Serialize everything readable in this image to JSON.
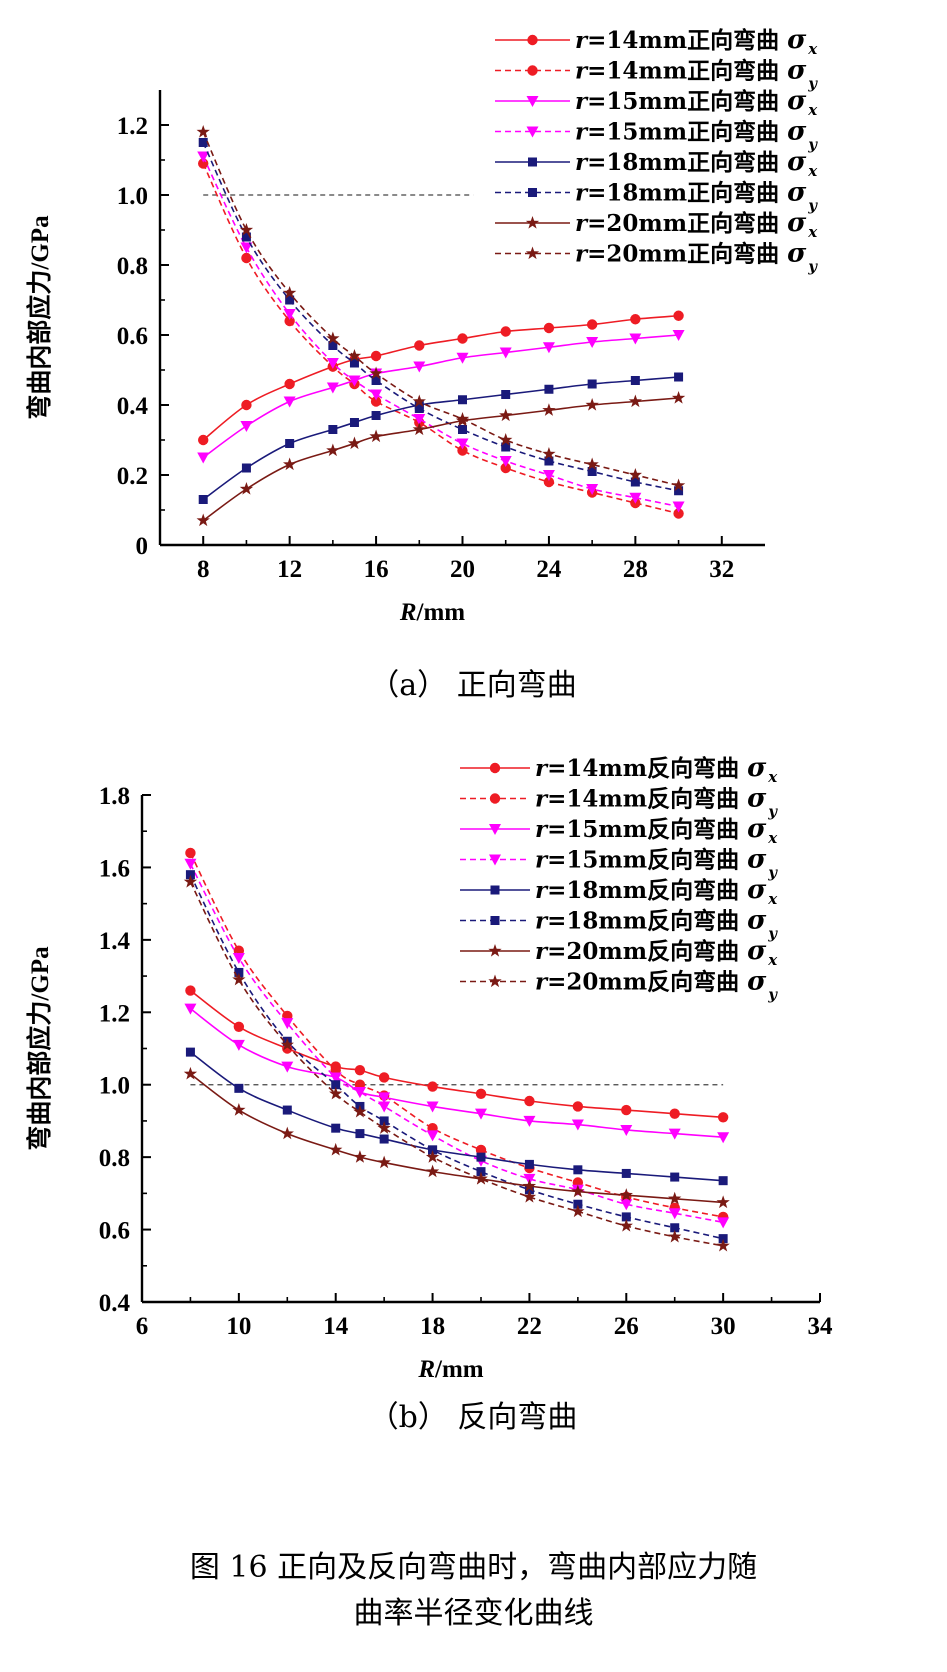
{
  "chart_data": [
    {
      "type": "line",
      "xlabel": "R/mm",
      "ylabel": "弯曲内部应力/GPa",
      "subtitle": "（a）  正向弯曲",
      "xlim": [
        6,
        34
      ],
      "ylim": [
        0,
        1.3
      ],
      "xticks": [
        "8",
        "12",
        "16",
        "20",
        "24",
        "28",
        "32"
      ],
      "yticks": [
        "0",
        "0.2",
        "0.4",
        "0.6",
        "0.8",
        "1.0",
        "1.2"
      ],
      "reference_line": 1.0,
      "legend_position": "top-right",
      "x": [
        8,
        10,
        12,
        14,
        15,
        16,
        18,
        20,
        22,
        24,
        26,
        28,
        30
      ],
      "series": [
        {
          "name": "r=14mm正向弯曲 σx",
          "color": "#ee1c24",
          "marker": "circle",
          "dash": false,
          "values": [
            0.3,
            0.4,
            0.46,
            0.51,
            0.53,
            0.54,
            0.57,
            0.59,
            0.61,
            0.62,
            0.63,
            0.645,
            0.655
          ]
        },
        {
          "name": "r=14mm正向弯曲 σy",
          "color": "#ee1c24",
          "marker": "circle",
          "dash": true,
          "values": [
            1.09,
            0.82,
            0.64,
            0.51,
            0.46,
            0.41,
            0.35,
            0.27,
            0.22,
            0.18,
            0.15,
            0.12,
            0.09
          ]
        },
        {
          "name": "r=15mm正向弯曲 σx",
          "color": "#ff00ff",
          "marker": "triangle",
          "dash": false,
          "values": [
            0.25,
            0.34,
            0.41,
            0.45,
            0.47,
            0.49,
            0.51,
            0.535,
            0.55,
            0.565,
            0.58,
            0.59,
            0.6
          ]
        },
        {
          "name": "r=15mm正向弯曲 σy",
          "color": "#ff00ff",
          "marker": "triangle",
          "dash": true,
          "values": [
            1.11,
            0.85,
            0.66,
            0.52,
            0.47,
            0.43,
            0.36,
            0.29,
            0.24,
            0.2,
            0.16,
            0.135,
            0.11
          ]
        },
        {
          "name": "r=18mm正向弯曲 σx",
          "color": "#1a1a7a",
          "marker": "square",
          "dash": false,
          "values": [
            0.13,
            0.22,
            0.29,
            0.33,
            0.35,
            0.37,
            0.4,
            0.415,
            0.43,
            0.445,
            0.46,
            0.47,
            0.48
          ]
        },
        {
          "name": "r=18mm正向弯曲 σy",
          "color": "#1a1a7a",
          "marker": "square",
          "dash": true,
          "values": [
            1.15,
            0.88,
            0.7,
            0.57,
            0.52,
            0.47,
            0.39,
            0.33,
            0.28,
            0.24,
            0.21,
            0.18,
            0.155
          ]
        },
        {
          "name": "r=20mm正向弯曲 σx",
          "color": "#7a1a14",
          "marker": "star",
          "dash": false,
          "values": [
            0.07,
            0.16,
            0.23,
            0.27,
            0.29,
            0.31,
            0.33,
            0.355,
            0.37,
            0.385,
            0.4,
            0.41,
            0.42
          ]
        },
        {
          "name": "r=20mm正向弯曲 σy",
          "color": "#7a1a14",
          "marker": "star",
          "dash": true,
          "values": [
            1.18,
            0.9,
            0.72,
            0.59,
            0.54,
            0.49,
            0.41,
            0.36,
            0.3,
            0.26,
            0.23,
            0.2,
            0.17
          ]
        }
      ]
    },
    {
      "type": "line",
      "xlabel": "R/mm",
      "ylabel": "弯曲内部应力/GPa",
      "subtitle": "（b）  反向弯曲",
      "xlim": [
        6,
        34
      ],
      "ylim": [
        0.4,
        1.8
      ],
      "xticks": [
        "6",
        "10",
        "14",
        "18",
        "22",
        "26",
        "30",
        "34"
      ],
      "yticks": [
        "0.4",
        "0.6",
        "0.8",
        "1.0",
        "1.2",
        "1.4",
        "1.6",
        "1.8"
      ],
      "reference_line": 1.0,
      "legend_position": "top-right",
      "x": [
        8,
        10,
        12,
        14,
        15,
        16,
        18,
        20,
        22,
        24,
        26,
        28,
        30
      ],
      "series": [
        {
          "name": "r=14mm反向弯曲 σx",
          "color": "#ee1c24",
          "marker": "circle",
          "dash": false,
          "values": [
            1.26,
            1.16,
            1.1,
            1.05,
            1.04,
            1.02,
            0.995,
            0.975,
            0.955,
            0.94,
            0.93,
            0.92,
            0.91
          ]
        },
        {
          "name": "r=14mm反向弯曲 σy",
          "color": "#ee1c24",
          "marker": "circle",
          "dash": true,
          "values": [
            1.64,
            1.37,
            1.19,
            1.04,
            1.0,
            0.97,
            0.88,
            0.82,
            0.77,
            0.73,
            0.69,
            0.66,
            0.635
          ]
        },
        {
          "name": "r=15mm反向弯曲 σx",
          "color": "#ff00ff",
          "marker": "triangle",
          "dash": false,
          "values": [
            1.21,
            1.11,
            1.05,
            1.02,
            0.98,
            0.965,
            0.94,
            0.92,
            0.9,
            0.89,
            0.875,
            0.865,
            0.855
          ]
        },
        {
          "name": "r=15mm反向弯曲 σy",
          "color": "#ff00ff",
          "marker": "triangle",
          "dash": true,
          "values": [
            1.61,
            1.35,
            1.17,
            1.02,
            0.98,
            0.94,
            0.86,
            0.79,
            0.74,
            0.71,
            0.67,
            0.645,
            0.62
          ]
        },
        {
          "name": "r=18mm反向弯曲 σx",
          "color": "#1a1a7a",
          "marker": "square",
          "dash": false,
          "values": [
            1.09,
            0.99,
            0.93,
            0.88,
            0.865,
            0.85,
            0.82,
            0.8,
            0.78,
            0.765,
            0.755,
            0.745,
            0.735
          ]
        },
        {
          "name": "r=18mm反向弯曲 σy",
          "color": "#1a1a7a",
          "marker": "square",
          "dash": true,
          "values": [
            1.58,
            1.31,
            1.12,
            1.0,
            0.94,
            0.9,
            0.82,
            0.76,
            0.71,
            0.67,
            0.635,
            0.605,
            0.575
          ]
        },
        {
          "name": "r=20mm反向弯曲 σx",
          "color": "#7a1a14",
          "marker": "star",
          "dash": false,
          "values": [
            1.03,
            0.93,
            0.865,
            0.82,
            0.8,
            0.785,
            0.76,
            0.74,
            0.72,
            0.705,
            0.695,
            0.685,
            0.675
          ]
        },
        {
          "name": "r=20mm反向弯曲 σy",
          "color": "#7a1a14",
          "marker": "star",
          "dash": true,
          "values": [
            1.56,
            1.29,
            1.11,
            0.975,
            0.925,
            0.88,
            0.8,
            0.74,
            0.69,
            0.65,
            0.61,
            0.58,
            0.555
          ]
        }
      ]
    }
  ],
  "caption": {
    "line1": "图 16   正向及反向弯曲时，弯曲内部应力随",
    "line2": "曲率半径变化曲线"
  }
}
